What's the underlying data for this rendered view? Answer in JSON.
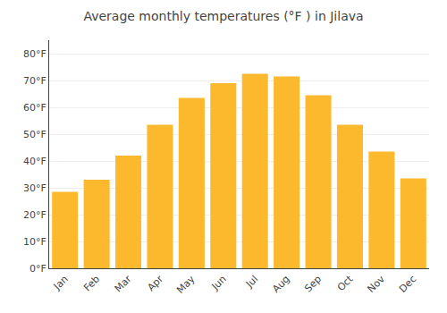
{
  "chart_data": {
    "type": "bar",
    "title": "Average monthly temperatures (°F ) in Jilava",
    "categories": [
      "Jan",
      "Feb",
      "Mar",
      "Apr",
      "May",
      "Jun",
      "Jul",
      "Aug",
      "Sep",
      "Oct",
      "Nov",
      "Dec"
    ],
    "values": [
      28.5,
      33.0,
      42.0,
      53.5,
      63.5,
      69.0,
      72.5,
      71.5,
      64.5,
      53.5,
      43.5,
      33.5
    ],
    "color": "#FDB92E",
    "ylim": [
      0,
      85
    ],
    "yticks": [
      {
        "value": 0,
        "label": "0°F"
      },
      {
        "value": 10,
        "label": "10°F"
      },
      {
        "value": 20,
        "label": "20°F"
      },
      {
        "value": 30,
        "label": "30°F"
      },
      {
        "value": 40,
        "label": "40°F"
      },
      {
        "value": 50,
        "label": "50°F"
      },
      {
        "value": 60,
        "label": "60°F"
      },
      {
        "value": 70,
        "label": "70°F"
      },
      {
        "value": 80,
        "label": "80°F"
      }
    ],
    "grid": true
  }
}
